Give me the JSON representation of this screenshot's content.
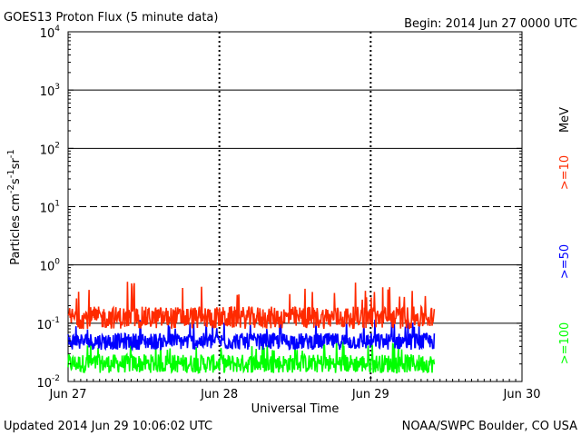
{
  "header": {
    "title": "GOES13 Proton Flux (5 minute data)",
    "begin": "Begin: 2014 Jun 27 0000 UTC"
  },
  "footer": {
    "updated": "Updated 2014 Jun 29 10:06:02 UTC",
    "credit": "NOAA/SWPC Boulder, CO USA"
  },
  "chart_data": {
    "type": "line",
    "title": "GOES13 Proton Flux (5 minute data)",
    "xlabel": "Universal Time",
    "ylabel": "Particles cm-2 s-1 sr-1",
    "y_scale": "log",
    "ylim": [
      0.01,
      10000
    ],
    "y_ticks": [
      {
        "value": 0.01,
        "base": "10",
        "exp": "-2"
      },
      {
        "value": 0.1,
        "base": "10",
        "exp": "-1"
      },
      {
        "value": 1,
        "base": "10",
        "exp": "0"
      },
      {
        "value": 10,
        "base": "10",
        "exp": "1"
      },
      {
        "value": 100,
        "base": "10",
        "exp": "2"
      },
      {
        "value": 1000,
        "base": "10",
        "exp": "3"
      },
      {
        "value": 10000,
        "base": "10",
        "exp": "4"
      }
    ],
    "x_ticks": [
      "Jun 27",
      "Jun 28",
      "Jun 29",
      "Jun 30"
    ],
    "xlim_days": [
      0,
      3
    ],
    "data_end_day": 2.42,
    "threshold_line": 10,
    "unit_label": "MeV",
    "series": [
      {
        "name": ">=10",
        "color": "#ff2a00",
        "min": 0.08,
        "typical": 0.11,
        "max": 0.55
      },
      {
        "name": ">=50",
        "color": "#0000ff",
        "min": 0.035,
        "typical": 0.05,
        "max": 0.12
      },
      {
        "name": ">=100",
        "color": "#00ff00",
        "min": 0.014,
        "typical": 0.022,
        "max": 0.05
      }
    ],
    "grid": true,
    "legend": "right-vertical"
  }
}
